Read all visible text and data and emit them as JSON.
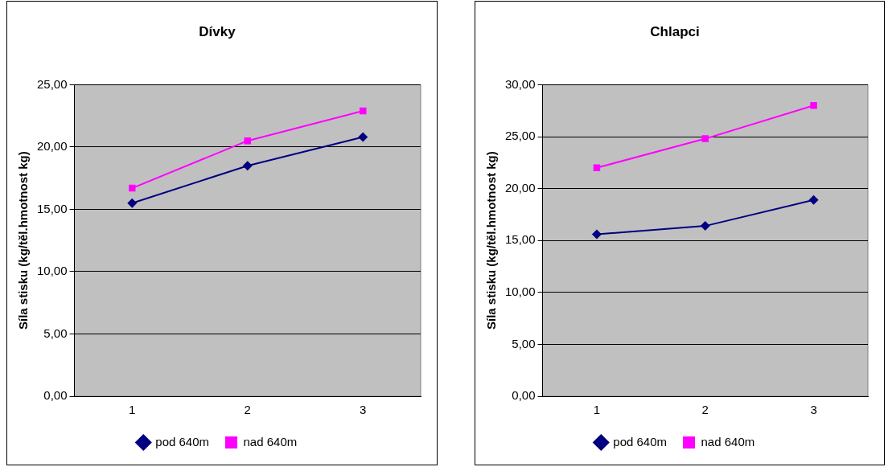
{
  "chart_data": [
    {
      "type": "line",
      "title": "Dívky",
      "ylabel": "Síla stisku (kg/těl.hmotnost kg)",
      "categories": [
        "1",
        "2",
        "3"
      ],
      "series": [
        {
          "name": "pod 640m",
          "color": "#000080",
          "values": [
            15.5,
            18.5,
            20.8
          ],
          "marker": "diamond"
        },
        {
          "name": "nad 640m",
          "color": "#ff00ff",
          "values": [
            16.7,
            20.5,
            22.9
          ],
          "marker": "square"
        }
      ],
      "ylim": [
        0,
        25
      ],
      "yticks": [
        {
          "value": 0,
          "label": "0,00"
        },
        {
          "value": 5,
          "label": "5,00"
        },
        {
          "value": 10,
          "label": "10,00"
        },
        {
          "value": 15,
          "label": "15,00"
        },
        {
          "value": 20,
          "label": "20,00"
        },
        {
          "value": 25,
          "label": "25,00"
        }
      ],
      "grid": "y",
      "legend": "bottom",
      "line_style": "solid"
    },
    {
      "type": "line",
      "title": "Chlapci",
      "ylabel": "Síla stisku (kg/těl.hmotnost kg)",
      "categories": [
        "1",
        "2",
        "3"
      ],
      "series": [
        {
          "name": "pod 640m",
          "color": "#000080",
          "values": [
            15.6,
            16.4,
            18.9
          ],
          "marker": "diamond"
        },
        {
          "name": "nad 640m",
          "color": "#ff00ff",
          "values": [
            22.0,
            24.8,
            28.0
          ],
          "marker": "square"
        }
      ],
      "ylim": [
        0,
        30
      ],
      "yticks": [
        {
          "value": 0,
          "label": "0,00"
        },
        {
          "value": 5,
          "label": "5,00"
        },
        {
          "value": 10,
          "label": "10,00"
        },
        {
          "value": 15,
          "label": "15,00"
        },
        {
          "value": 20,
          "label": "20,00"
        },
        {
          "value": 25,
          "label": "25,00"
        },
        {
          "value": 30,
          "label": "30,00"
        }
      ],
      "grid": "y",
      "legend": "bottom",
      "line_style": "solid"
    }
  ]
}
